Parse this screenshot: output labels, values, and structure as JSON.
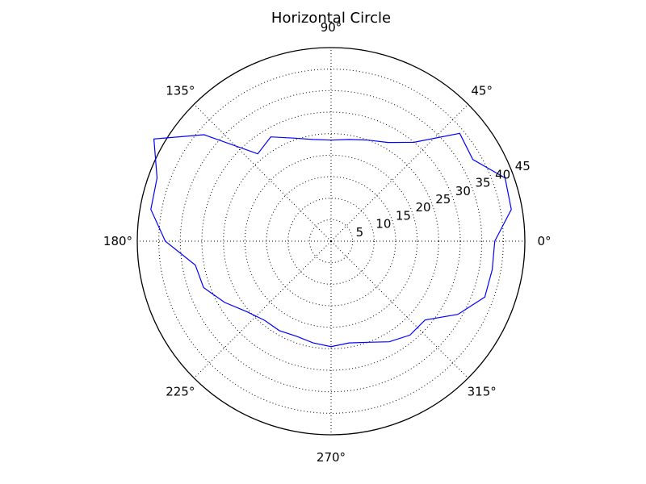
{
  "chart_data": {
    "type": "line",
    "projection": "polar",
    "title": "Horizontal Circle",
    "theta_tick_labels": [
      "0°",
      "45°",
      "90°",
      "135°",
      "180°",
      "225°",
      "270°",
      "315°"
    ],
    "theta_ticks_deg": [
      0,
      45,
      90,
      135,
      180,
      225,
      270,
      315
    ],
    "r_tick_labels": [
      "5",
      "10",
      "15",
      "20",
      "25",
      "30",
      "35",
      "40",
      "45"
    ],
    "r_ticks": [
      5,
      10,
      15,
      20,
      25,
      30,
      35,
      40,
      45
    ],
    "rlim": [
      0,
      45
    ],
    "grid": true,
    "series": [
      {
        "color": "#0000ff",
        "theta_deg": [
          0,
          10,
          20,
          30,
          40,
          50,
          60,
          70,
          80,
          90,
          100,
          110,
          120,
          130,
          140,
          150,
          160,
          170,
          180,
          190,
          200,
          210,
          220,
          230,
          240,
          250,
          260,
          270,
          280,
          290,
          300,
          310,
          320,
          330,
          340,
          350,
          360
        ],
        "r": [
          38,
          42.5,
          43,
          38,
          39,
          30,
          26.5,
          25,
          24,
          23.5,
          24,
          25.5,
          28,
          26.5,
          38.5,
          47.5,
          43,
          42.5,
          38.5,
          32,
          31.5,
          28.5,
          25.5,
          24,
          24,
          23.5,
          24,
          24.5,
          24,
          25,
          27,
          28.5,
          28.5,
          34,
          38,
          38,
          38
        ]
      }
    ]
  }
}
